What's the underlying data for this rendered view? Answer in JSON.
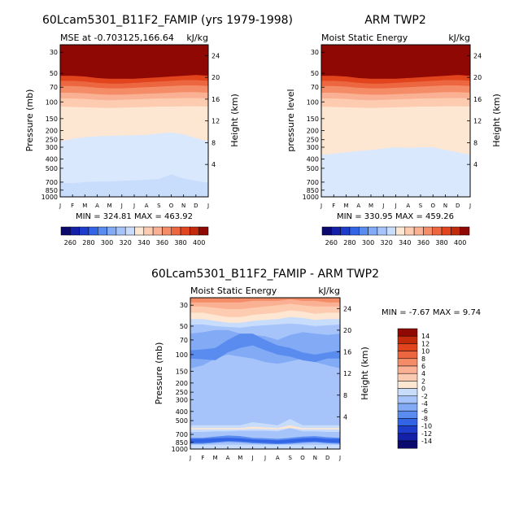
{
  "chart_data": [
    {
      "type": "heatmap",
      "title": "60Lcam5301_B11F2_FAMIP (yrs 1979-1998)",
      "subtitle_left": "MSE at -0.703125,166.64",
      "subtitle_right": "kJ/kg",
      "ylabel": "Pressure (mb)",
      "y2label": "Height (km)",
      "months": [
        "J",
        "F",
        "M",
        "A",
        "M",
        "J",
        "J",
        "A",
        "S",
        "O",
        "N",
        "D",
        "J"
      ],
      "pressure_ticks": [
        "30",
        "50",
        "70",
        "100",
        "150",
        "200",
        "250",
        "300",
        "400",
        "500",
        "700",
        "850",
        "1000"
      ],
      "height_ticks": [
        "24",
        "20",
        "16",
        "12",
        "8",
        "4"
      ],
      "minmax": "MIN = 324.81  MAX = 463.92",
      "colorbar_labels": [
        "260",
        "280",
        "300",
        "320",
        "340",
        "360",
        "380",
        "400"
      ],
      "contour_boundaries_mb": [
        {
          "level": 400,
          "p": [
            53,
            53,
            54,
            56,
            57,
            57,
            57,
            56,
            55,
            54,
            53,
            52,
            53
          ]
        },
        {
          "level": 390,
          "p": [
            60,
            60,
            61,
            63,
            64,
            64,
            63,
            62,
            61,
            60,
            59,
            59,
            60
          ]
        },
        {
          "level": 380,
          "p": [
            68,
            68,
            69,
            71,
            72,
            72,
            71,
            70,
            69,
            68,
            67,
            67,
            68
          ]
        },
        {
          "level": 370,
          "p": [
            80,
            80,
            81,
            83,
            84,
            84,
            83,
            82,
            81,
            80,
            79,
            79,
            80
          ]
        },
        {
          "level": 360,
          "p": [
            92,
            92,
            93,
            95,
            96,
            95,
            94,
            93,
            92,
            92,
            91,
            91,
            92
          ]
        },
        {
          "level": 350,
          "p": [
            112,
            113,
            114,
            115,
            116,
            115,
            114,
            113,
            112,
            112,
            111,
            111,
            112
          ]
        },
        {
          "level": 340,
          "p": [
            260,
            245,
            235,
            230,
            228,
            226,
            224,
            222,
            215,
            210,
            220,
            240,
            260
          ]
        },
        {
          "level": 330,
          "p": [
            710,
            720,
            700,
            690,
            690,
            680,
            670,
            660,
            650,
            580,
            640,
            680,
            710
          ]
        },
        {
          "level": 320,
          "p": [
            820,
            830,
            830,
            830,
            830,
            830,
            830,
            820,
            810,
            790,
            810,
            820,
            820
          ]
        }
      ]
    },
    {
      "type": "heatmap",
      "title": "ARM TWP2",
      "subtitle_left": "Moist Static Energy",
      "subtitle_right": "kJ/kg",
      "ylabel": "pressure level",
      "y2label": "Height (km)",
      "months": [
        "J",
        "F",
        "M",
        "A",
        "M",
        "J",
        "J",
        "A",
        "S",
        "O",
        "N",
        "D",
        "J"
      ],
      "pressure_ticks": [
        "30",
        "50",
        "70",
        "100",
        "150",
        "200",
        "250",
        "300",
        "400",
        "500",
        "700",
        "850",
        "1000"
      ],
      "height_ticks": [
        "24",
        "20",
        "16",
        "12",
        "8",
        "4"
      ],
      "minmax": "MIN = 330.95  MAX = 459.26",
      "colorbar_labels": [
        "260",
        "280",
        "300",
        "320",
        "340",
        "360",
        "380",
        "400"
      ],
      "contour_boundaries_mb": [
        {
          "level": 400,
          "p": [
            53,
            53,
            54,
            56,
            57,
            57,
            57,
            56,
            55,
            54,
            53,
            52,
            53
          ]
        },
        {
          "level": 390,
          "p": [
            60,
            60,
            61,
            63,
            64,
            64,
            63,
            62,
            61,
            60,
            59,
            59,
            60
          ]
        },
        {
          "level": 380,
          "p": [
            68,
            68,
            69,
            71,
            72,
            72,
            71,
            70,
            69,
            68,
            67,
            67,
            68
          ]
        },
        {
          "level": 370,
          "p": [
            80,
            80,
            81,
            83,
            84,
            84,
            83,
            82,
            81,
            80,
            79,
            79,
            80
          ]
        },
        {
          "level": 360,
          "p": [
            92,
            92,
            93,
            95,
            96,
            95,
            94,
            93,
            92,
            92,
            91,
            91,
            92
          ]
        },
        {
          "level": 350,
          "p": [
            112,
            113,
            114,
            115,
            116,
            115,
            114,
            113,
            112,
            112,
            111,
            111,
            112
          ]
        },
        {
          "level": 340,
          "p": [
            360,
            350,
            340,
            330,
            320,
            310,
            300,
            305,
            300,
            300,
            320,
            340,
            360
          ]
        },
        {
          "level": 330,
          "p": [
            900,
            895,
            890,
            890,
            885,
            885,
            885,
            885,
            890,
            890,
            895,
            895,
            900
          ]
        }
      ]
    },
    {
      "type": "heatmap",
      "title": "60Lcam5301_B11F2_FAMIP - ARM TWP2",
      "subtitle_left": "Moist Static Energy",
      "subtitle_right": "kJ/kg",
      "ylabel": "Pressure (mb)",
      "y2label": "Height (km)",
      "months": [
        "J",
        "F",
        "M",
        "A",
        "M",
        "J",
        "J",
        "A",
        "S",
        "O",
        "N",
        "D",
        "J"
      ],
      "pressure_ticks": [
        "30",
        "50",
        "70",
        "100",
        "150",
        "200",
        "250",
        "300",
        "400",
        "500",
        "700",
        "850",
        "1000"
      ],
      "height_ticks": [
        "24",
        "20",
        "16",
        "12",
        "8",
        "4"
      ],
      "minmax": "MIN = -7.67 MAX =  9.74",
      "colorbar_labels": [
        "14",
        "12",
        "10",
        "8",
        "6",
        "4",
        "2",
        "0",
        "-2",
        "-4",
        "-6",
        "-8",
        "-10",
        "-12",
        "-14"
      ],
      "background_band": -2
    }
  ]
}
